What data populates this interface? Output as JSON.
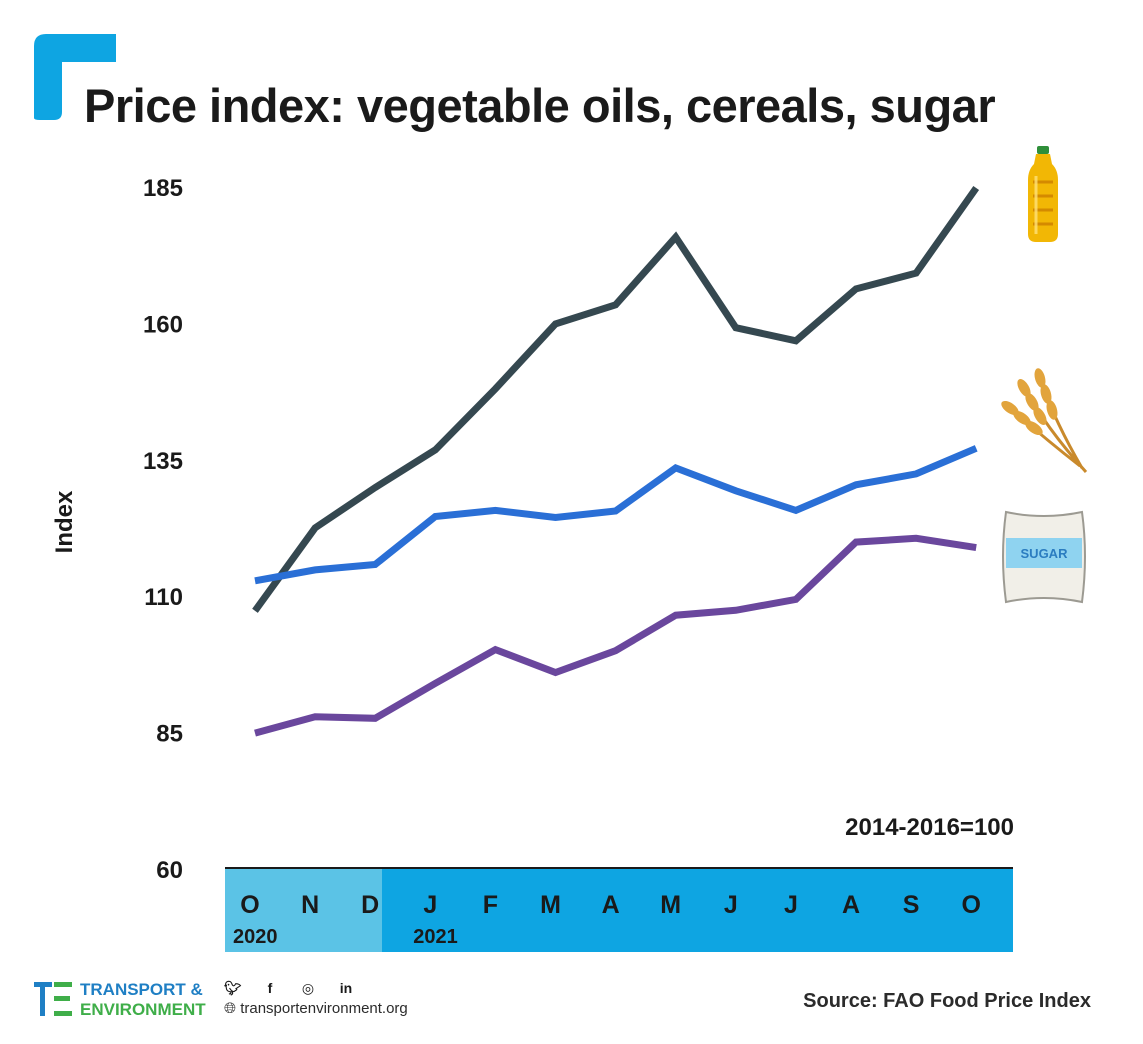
{
  "title": "Price index: vegetable oils, cereals, sugar",
  "source": "Source: FAO Food Price Index",
  "brand": {
    "line1": "TRANSPORT &",
    "line2": "ENVIRONMENT",
    "website": "transportenvironment.org",
    "social_icons": [
      "twitter-icon",
      "facebook-icon",
      "instagram-icon",
      "linkedin-icon"
    ]
  },
  "colors": {
    "accent": "#0ea5e2",
    "band_2020": "#5bc3e6",
    "band_2021": "#0ea5e2",
    "brand_blue": "#1f7fc4",
    "brand_green": "#3fae49"
  },
  "chart_data": {
    "type": "line",
    "title": "Price index: vegetable oils, cereals, sugar",
    "ylabel": "Index",
    "xlabel": "",
    "note": "2014-2016=100",
    "categories": [
      "O",
      "N",
      "D",
      "J",
      "F",
      "M",
      "A",
      "M",
      "J",
      "J",
      "A",
      "S",
      "O"
    ],
    "year_labels": [
      {
        "label": "2020",
        "start_index": 0,
        "end_index": 2
      },
      {
        "label": "2021",
        "start_index": 3,
        "end_index": 12
      }
    ],
    "yticks": [
      60,
      85,
      110,
      135,
      160,
      185
    ],
    "ylim": [
      60,
      185
    ],
    "grid": false,
    "series": [
      {
        "icon": "oil-bottle-icon",
        "color": "#354850",
        "values": [
          107.5,
          122.7,
          130.1,
          137.0,
          148.2,
          160.1,
          163.6,
          176.0,
          159.4,
          157.0,
          166.5,
          169.4,
          185.0
        ]
      },
      {
        "icon": "wheat-icon",
        "color": "#2a6fd6",
        "values": [
          113.0,
          115.0,
          116.0,
          124.8,
          125.9,
          124.6,
          125.8,
          133.7,
          129.5,
          125.9,
          130.6,
          132.6,
          137.3
        ]
      },
      {
        "icon": "sugar-sack-icon",
        "color": "#6a479d",
        "values": [
          85.1,
          88.1,
          87.8,
          94.2,
          100.4,
          96.2,
          100.2,
          106.7,
          107.6,
          109.6,
          120.1,
          120.8,
          119.1
        ]
      }
    ]
  }
}
